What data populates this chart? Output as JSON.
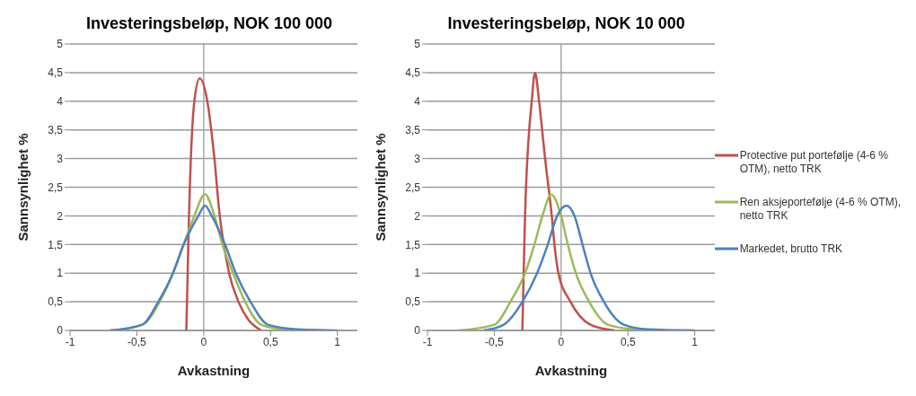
{
  "chart_data": [
    {
      "type": "line",
      "title": "Investeringsbeløp, NOK 100 000",
      "xlabel": "Avkastning",
      "ylabel": "Sannsynlighet %",
      "xlim": [
        -1,
        1.15
      ],
      "ylim": [
        0,
        5
      ],
      "xticks": [
        {
          "value": -1,
          "label": "-1"
        },
        {
          "value": -0.5,
          "label": "-0,5"
        },
        {
          "value": 0,
          "label": "0"
        },
        {
          "value": 0.5,
          "label": "0,5"
        },
        {
          "value": 1,
          "label": "1"
        }
      ],
      "yticks": [
        {
          "value": 0,
          "label": "0"
        },
        {
          "value": 0.5,
          "label": "0,5"
        },
        {
          "value": 1,
          "label": "1"
        },
        {
          "value": 1.5,
          "label": "1,5"
        },
        {
          "value": 2,
          "label": "2"
        },
        {
          "value": 2.5,
          "label": "2,5"
        },
        {
          "value": 3,
          "label": "3"
        },
        {
          "value": 3.5,
          "label": "3,5"
        },
        {
          "value": 4,
          "label": "4"
        },
        {
          "value": 4.5,
          "label": "4,5"
        },
        {
          "value": 5,
          "label": "5"
        }
      ],
      "grid": "y",
      "legend": false,
      "ref_lines": [
        {
          "axis": "x",
          "value": 0,
          "color": "#a6a6a6"
        }
      ],
      "series": [
        {
          "color": "#c0504d",
          "x": [
            -0.13,
            -0.125,
            -0.11,
            -0.07,
            -0.03,
            0.027,
            0.08,
            0.12,
            0.15,
            0.19,
            0.26,
            0.33,
            0.43
          ],
          "values": [
            0,
            0.5,
            2,
            4,
            4.4,
            4,
            3,
            2,
            1.5,
            1,
            0.5,
            0.2,
            0
          ]
        },
        {
          "color": "#9bbb59",
          "x": [
            -0.7,
            -0.46,
            -0.33,
            -0.23,
            -0.15,
            -0.07,
            0.01,
            0.08,
            0.14,
            0.22,
            0.31,
            0.43,
            0.6,
            0.9
          ],
          "values": [
            0,
            0.1,
            0.5,
            1,
            1.5,
            2,
            2.38,
            2,
            1.5,
            1,
            0.5,
            0.1,
            0.02,
            0
          ]
        },
        {
          "color": "#4f81bd",
          "x": [
            -0.7,
            -0.46,
            -0.34,
            -0.23,
            -0.15,
            -0.04,
            0.01,
            0.06,
            0.16,
            0.24,
            0.35,
            0.48,
            0.7,
            1
          ],
          "values": [
            0,
            0.1,
            0.5,
            1,
            1.5,
            2,
            2.18,
            2,
            1.5,
            1,
            0.5,
            0.1,
            0.02,
            0
          ]
        }
      ]
    },
    {
      "type": "line",
      "title": "Investeringsbeløp, NOK 10 000",
      "xlabel": "Avkastning",
      "ylabel": "Sannsynlighet %",
      "xlim": [
        -1,
        1.15
      ],
      "ylim": [
        0,
        5
      ],
      "xticks": [
        {
          "value": -1,
          "label": "-1"
        },
        {
          "value": -0.5,
          "label": "-0,5"
        },
        {
          "value": 0,
          "label": "0"
        },
        {
          "value": 0.5,
          "label": "0,5"
        },
        {
          "value": 1,
          "label": "1"
        }
      ],
      "yticks": [
        {
          "value": 0,
          "label": "0"
        },
        {
          "value": 0.5,
          "label": "0,5"
        },
        {
          "value": 1,
          "label": "1"
        },
        {
          "value": 1.5,
          "label": "1,5"
        },
        {
          "value": 2,
          "label": "2"
        },
        {
          "value": 2.5,
          "label": "2,5"
        },
        {
          "value": 3,
          "label": "3"
        },
        {
          "value": 3.5,
          "label": "3,5"
        },
        {
          "value": 4,
          "label": "4"
        },
        {
          "value": 4.5,
          "label": "4,5"
        },
        {
          "value": 5,
          "label": "5"
        }
      ],
      "grid": "y",
      "legend": "right",
      "ref_lines": [
        {
          "axis": "x",
          "value": 0,
          "color": "#a6a6a6"
        }
      ],
      "series": [
        {
          "name": "Protective put portefølje (4-6 % OTM), netto TRK",
          "color": "#c0504d",
          "x": [
            -0.29,
            -0.285,
            -0.27,
            -0.22,
            -0.195,
            -0.165,
            -0.12,
            -0.07,
            -0.05,
            -0.02,
            0.07,
            0.22,
            0.4
          ],
          "values": [
            0,
            0.5,
            2,
            4,
            4.5,
            4,
            3,
            2,
            1.5,
            1,
            0.5,
            0.1,
            0
          ]
        },
        {
          "name": "Ren aksjeportefølje (4-6 % OTM), netto TRK",
          "color": "#9bbb59",
          "x": [
            -0.77,
            -0.5,
            -0.38,
            -0.27,
            -0.2,
            -0.14,
            -0.075,
            0,
            0.05,
            0.11,
            0.21,
            0.35,
            0.55,
            0.8
          ],
          "values": [
            0,
            0.1,
            0.5,
            1,
            1.5,
            2,
            2.37,
            2,
            1.5,
            1,
            0.5,
            0.1,
            0.02,
            0
          ]
        },
        {
          "name": "Markedet, brutto TRK",
          "color": "#4f81bd",
          "x": [
            -0.58,
            -0.43,
            -0.29,
            -0.18,
            -0.1,
            -0.03,
            0.04,
            0.1,
            0.16,
            0.22,
            0.32,
            0.47,
            0.65,
            1
          ],
          "values": [
            0,
            0.1,
            0.5,
            1,
            1.5,
            2,
            2.18,
            2,
            1.5,
            1,
            0.5,
            0.1,
            0.02,
            0
          ]
        }
      ]
    }
  ]
}
